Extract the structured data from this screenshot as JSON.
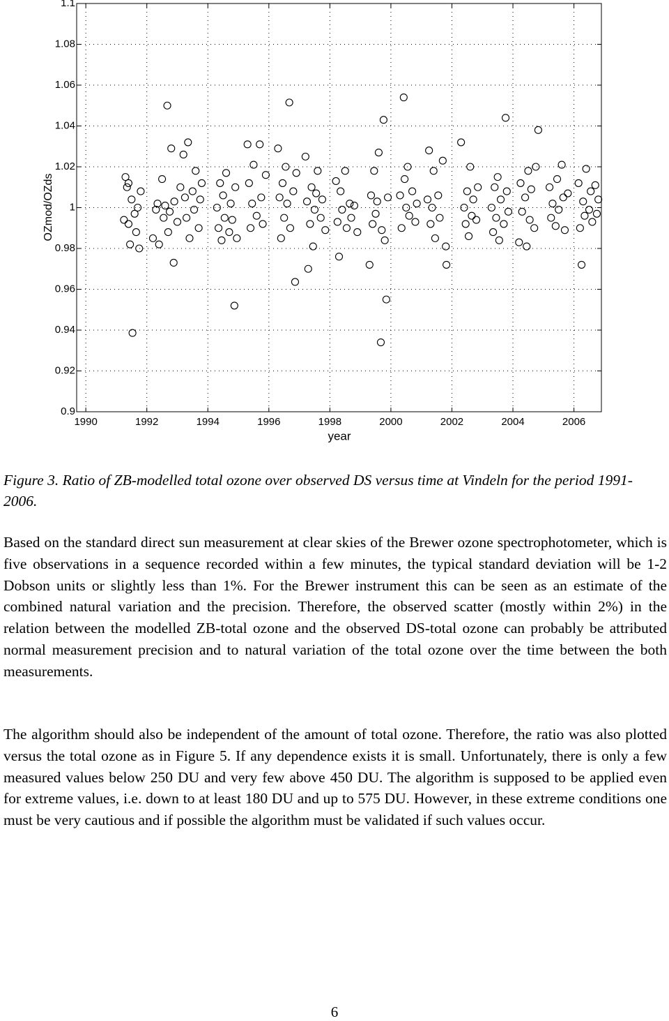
{
  "chart_data": {
    "type": "scatter",
    "xlabel": "year",
    "ylabel": "OZmod/OZds",
    "xlim": [
      1989.7,
      2006.9
    ],
    "xticks": [
      1990,
      1992,
      1994,
      1996,
      1998,
      2000,
      2002,
      2004,
      2006
    ],
    "ylim": [
      0.9,
      1.1
    ],
    "yticks": [
      0.9,
      0.92,
      0.94,
      0.96,
      0.98,
      1,
      1.02,
      1.04,
      1.06,
      1.08,
      1.1
    ],
    "grid": true,
    "color": "#000000",
    "x": [
      1991.25,
      1991.3,
      1991.35,
      1991.4,
      1991.45,
      1991.5,
      1991.53,
      1991.6,
      1991.65,
      1991.7,
      1991.75,
      1991.8,
      1991.4,
      1992.2,
      1992.3,
      1992.35,
      1992.4,
      1992.5,
      1992.55,
      1992.6,
      1992.67,
      1992.7,
      1992.75,
      1992.8,
      1992.88,
      1992.9,
      1993.0,
      1993.1,
      1993.2,
      1993.25,
      1993.3,
      1993.35,
      1993.4,
      1993.5,
      1993.55,
      1993.6,
      1993.7,
      1993.75,
      1993.8,
      1994.3,
      1994.35,
      1994.4,
      1994.45,
      1994.5,
      1994.55,
      1994.6,
      1994.7,
      1994.75,
      1994.8,
      1994.87,
      1994.9,
      1994.95,
      1995.3,
      1995.35,
      1995.4,
      1995.45,
      1995.5,
      1995.6,
      1995.7,
      1995.75,
      1995.8,
      1995.9,
      1996.3,
      1996.35,
      1996.4,
      1996.45,
      1996.5,
      1996.55,
      1996.6,
      1996.67,
      1996.7,
      1996.8,
      1996.86,
      1996.9,
      1997.2,
      1997.25,
      1997.29,
      1997.35,
      1997.4,
      1997.45,
      1997.5,
      1997.55,
      1997.6,
      1997.7,
      1997.75,
      1997.85,
      1998.2,
      1998.25,
      1998.3,
      1998.35,
      1998.4,
      1998.5,
      1998.55,
      1998.65,
      1998.7,
      1998.8,
      1998.9,
      1999.3,
      1999.35,
      1999.4,
      1999.45,
      1999.5,
      1999.55,
      1999.6,
      1999.67,
      1999.7,
      1999.76,
      1999.8,
      1999.85,
      1999.9,
      2000.3,
      2000.35,
      2000.42,
      2000.45,
      2000.5,
      2000.55,
      2000.6,
      2000.7,
      2000.8,
      2000.85,
      2001.2,
      2001.25,
      2001.3,
      2001.35,
      2001.4,
      2001.45,
      2001.55,
      2001.6,
      2001.7,
      2001.82,
      2001.8,
      2002.3,
      2002.4,
      2002.45,
      2002.5,
      2002.55,
      2002.6,
      2002.65,
      2002.7,
      2002.8,
      2002.85,
      2003.3,
      2003.35,
      2003.4,
      2003.45,
      2003.5,
      2003.55,
      2003.6,
      2003.7,
      2003.76,
      2003.8,
      2003.85,
      2004.2,
      2004.25,
      2004.3,
      2004.4,
      2004.45,
      2004.5,
      2004.55,
      2004.6,
      2004.7,
      2004.75,
      2004.83,
      2005.2,
      2005.25,
      2005.3,
      2005.4,
      2005.45,
      2005.5,
      2005.6,
      2005.65,
      2005.7,
      2005.8,
      2006.15,
      2006.2,
      2006.25,
      2006.3,
      2006.35,
      2006.4,
      2006.5,
      2006.55,
      2006.6,
      2006.7,
      2006.75,
      2006.8
    ],
    "values": [
      0.994,
      1.015,
      1.01,
      0.992,
      0.982,
      1.004,
      0.9386,
      0.997,
      0.988,
      1.0,
      0.98,
      1.008,
      1.012,
      0.985,
      0.999,
      1.002,
      0.982,
      1.014,
      0.995,
      1.001,
      1.05,
      0.988,
      0.998,
      1.029,
      0.973,
      1.003,
      0.993,
      1.01,
      1.026,
      1.005,
      0.995,
      1.032,
      0.985,
      1.008,
      0.999,
      1.018,
      0.99,
      1.004,
      1.012,
      1.0,
      0.99,
      1.012,
      0.984,
      1.006,
      0.995,
      1.017,
      0.988,
      1.002,
      0.994,
      0.952,
      1.01,
      0.985,
      1.031,
      1.012,
      0.99,
      1.002,
      1.021,
      0.996,
      1.031,
      1.005,
      0.992,
      1.016,
      1.029,
      1.005,
      0.985,
      1.012,
      0.995,
      1.02,
      1.002,
      1.0515,
      0.99,
      1.008,
      0.9636,
      1.017,
      1.025,
      1.003,
      0.97,
      0.992,
      1.01,
      0.981,
      0.999,
      1.007,
      1.018,
      0.995,
      1.004,
      0.989,
      1.013,
      0.993,
      0.976,
      1.008,
      0.999,
      1.018,
      0.99,
      1.002,
      0.995,
      1.001,
      0.988,
      0.972,
      1.006,
      0.992,
      1.018,
      0.997,
      1.003,
      1.027,
      0.934,
      0.989,
      1.043,
      0.984,
      0.955,
      1.005,
      1.006,
      0.99,
      1.054,
      1.014,
      1.0,
      1.02,
      0.996,
      1.008,
      0.993,
      1.002,
      1.004,
      1.028,
      0.992,
      1.0,
      1.018,
      0.985,
      1.006,
      0.995,
      1.023,
      0.972,
      0.981,
      1.032,
      1.0,
      0.992,
      1.008,
      0.986,
      1.02,
      0.996,
      1.004,
      0.994,
      1.01,
      1.0,
      0.988,
      1.01,
      0.995,
      1.015,
      0.984,
      1.004,
      0.992,
      1.044,
      1.008,
      0.998,
      0.983,
      1.012,
      0.998,
      1.005,
      0.981,
      1.018,
      0.994,
      1.009,
      0.99,
      1.02,
      1.038,
      1.01,
      0.995,
      1.002,
      0.991,
      1.014,
      0.999,
      1.021,
      1.005,
      0.989,
      1.007,
      1.012,
      0.99,
      0.972,
      1.003,
      0.996,
      1.019,
      0.999,
      1.008,
      0.993,
      1.011,
      0.997,
      1.004
    ]
  },
  "caption": "Figure 3. Ratio of ZB-modelled total ozone over observed DS versus time at Vindeln for the period 1991-2006.",
  "paragraphs": [
    "Based on the standard direct sun measurement at clear skies of the Brewer ozone spectrophotometer, which is five observations in a sequence recorded within a few minutes, the typical standard deviation will be 1-2 Dobson units or slightly less than 1%. For the Brewer instrument this can be seen as an estimate of the combined natural variation and the precision. Therefore, the observed scatter (mostly within 2%) in the relation between the modelled ZB-total ozone and the observed DS-total ozone can probably be attributed normal measurement precision and to natural variation of the total ozone over the time between the both measurements.",
    "The algorithm should also be independent of the amount of total ozone. Therefore, the ratio was also plotted versus the total ozone as in Figure 5. If any dependence exists it is small. Unfortunately, there is only a few measured values below 250 DU and very few above 450 DU. The algorithm is supposed to be applied even for extreme values, i.e. down to at least 180 DU and up to 575 DU. However, in these extreme conditions one must be very cautious and if possible the algorithm must be validated if such values occur."
  ],
  "page_number": "6"
}
